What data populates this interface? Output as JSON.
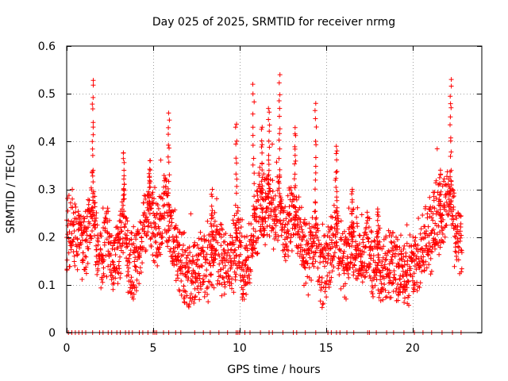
{
  "chart_data": {
    "type": "scatter",
    "title": "Day 025 of 2025, SRMTID for receiver nrmg",
    "xlabel": "GPS time / hours",
    "ylabel": "SRMTID / TECUs",
    "xlim": [
      0,
      24
    ],
    "ylim": [
      0,
      0.6
    ],
    "xticks": [
      0,
      5,
      10,
      15,
      20
    ],
    "xtick_labels": [
      "0",
      "5",
      "10",
      "15",
      "20"
    ],
    "yticks": [
      0,
      0.1,
      0.2,
      0.3,
      0.4,
      0.5,
      0.6
    ],
    "ytick_labels": [
      "0",
      "0.1",
      "0.2",
      "0.3",
      "0.4",
      "0.5",
      "0.6"
    ],
    "grid": true,
    "marker": "+",
    "color": "#ff0000",
    "series": [
      {
        "name": "SRMTID",
        "profile": [
          [
            0.0,
            0.2
          ],
          [
            0.3,
            0.22
          ],
          [
            0.6,
            0.19
          ],
          [
            0.9,
            0.18
          ],
          [
            1.2,
            0.2
          ],
          [
            1.5,
            0.28
          ],
          [
            1.8,
            0.16
          ],
          [
            2.1,
            0.18
          ],
          [
            2.4,
            0.19
          ],
          [
            2.7,
            0.15
          ],
          [
            3.0,
            0.17
          ],
          [
            3.3,
            0.24
          ],
          [
            3.6,
            0.15
          ],
          [
            3.9,
            0.14
          ],
          [
            4.2,
            0.18
          ],
          [
            4.5,
            0.22
          ],
          [
            4.8,
            0.26
          ],
          [
            5.1,
            0.2
          ],
          [
            5.4,
            0.22
          ],
          [
            5.7,
            0.27
          ],
          [
            6.0,
            0.21
          ],
          [
            6.3,
            0.17
          ],
          [
            6.6,
            0.14
          ],
          [
            6.9,
            0.13
          ],
          [
            7.2,
            0.12
          ],
          [
            7.5,
            0.12
          ],
          [
            7.8,
            0.13
          ],
          [
            8.1,
            0.14
          ],
          [
            8.4,
            0.16
          ],
          [
            8.7,
            0.17
          ],
          [
            9.0,
            0.15
          ],
          [
            9.3,
            0.13
          ],
          [
            9.6,
            0.16
          ],
          [
            9.9,
            0.2
          ],
          [
            10.2,
            0.12
          ],
          [
            10.5,
            0.14
          ],
          [
            10.8,
            0.2
          ],
          [
            11.1,
            0.26
          ],
          [
            11.4,
            0.25
          ],
          [
            11.7,
            0.27
          ],
          [
            12.0,
            0.24
          ],
          [
            12.3,
            0.27
          ],
          [
            12.6,
            0.2
          ],
          [
            12.9,
            0.23
          ],
          [
            13.2,
            0.25
          ],
          [
            13.5,
            0.2
          ],
          [
            13.8,
            0.16
          ],
          [
            14.1,
            0.15
          ],
          [
            14.4,
            0.2
          ],
          [
            14.7,
            0.13
          ],
          [
            15.0,
            0.14
          ],
          [
            15.3,
            0.17
          ],
          [
            15.6,
            0.22
          ],
          [
            15.9,
            0.15
          ],
          [
            16.2,
            0.14
          ],
          [
            16.5,
            0.19
          ],
          [
            16.8,
            0.16
          ],
          [
            17.1,
            0.15
          ],
          [
            17.4,
            0.19
          ],
          [
            17.7,
            0.14
          ],
          [
            18.0,
            0.15
          ],
          [
            18.3,
            0.13
          ],
          [
            18.6,
            0.14
          ],
          [
            18.9,
            0.15
          ],
          [
            19.2,
            0.13
          ],
          [
            19.5,
            0.12
          ],
          [
            19.8,
            0.13
          ],
          [
            20.1,
            0.14
          ],
          [
            20.4,
            0.17
          ],
          [
            20.7,
            0.19
          ],
          [
            21.0,
            0.2
          ],
          [
            21.3,
            0.22
          ],
          [
            21.6,
            0.24
          ],
          [
            21.9,
            0.26
          ],
          [
            22.2,
            0.28
          ],
          [
            22.5,
            0.19
          ],
          [
            22.8,
            0.18
          ]
        ],
        "peaks": [
          [
            1.5,
            0.53
          ],
          [
            3.3,
            0.38
          ],
          [
            4.8,
            0.36
          ],
          [
            5.9,
            0.46
          ],
          [
            8.4,
            0.3
          ],
          [
            9.8,
            0.44
          ],
          [
            10.8,
            0.52
          ],
          [
            11.3,
            0.43
          ],
          [
            11.7,
            0.47
          ],
          [
            12.3,
            0.54
          ],
          [
            13.2,
            0.43
          ],
          [
            14.4,
            0.48
          ],
          [
            15.6,
            0.39
          ],
          [
            16.5,
            0.3
          ],
          [
            18.0,
            0.26
          ],
          [
            21.6,
            0.34
          ],
          [
            22.2,
            0.53
          ]
        ],
        "zero_points_x": [
          0.1,
          0.3,
          0.5,
          0.7,
          0.9,
          1.1,
          1.5,
          1.9,
          2.1,
          2.4,
          2.6,
          2.9,
          3.1,
          3.4,
          3.6,
          3.8,
          4.2,
          4.4,
          4.7,
          5.0,
          5.1,
          5.2,
          5.6,
          5.9,
          6.3,
          6.6,
          7.4,
          7.9,
          8.3,
          8.8,
          9.3,
          9.8,
          9.9,
          10.0,
          10.3,
          10.6,
          11.2,
          11.7,
          11.9,
          12.5,
          13.1,
          13.3,
          13.8,
          14.4,
          15.1,
          15.3,
          15.6,
          15.8,
          16.2,
          16.6,
          17.4,
          17.5,
          17.9,
          18.5,
          18.9,
          19.5,
          20.1,
          20.6,
          21.1,
          21.7,
          22.3,
          22.8
        ]
      }
    ]
  }
}
